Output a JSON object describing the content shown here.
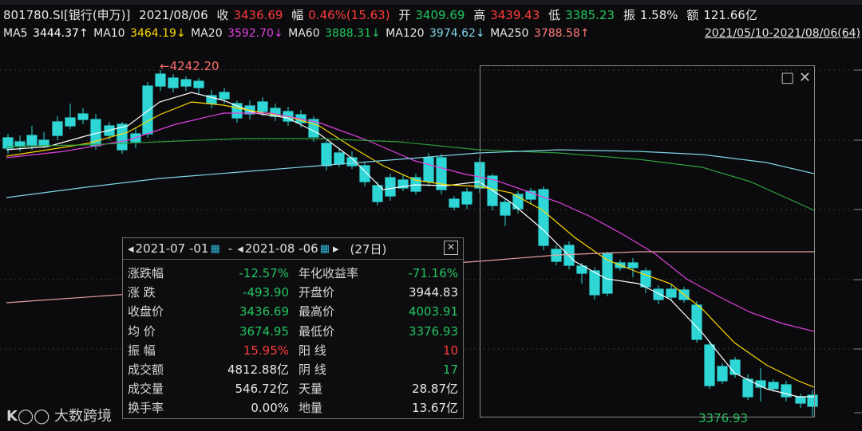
{
  "header": {
    "code": "801780.SI[银行(申万)]",
    "date": "2021/08/06",
    "close_label": "收",
    "close_value": "3436.69",
    "pct_label": "幅",
    "pct_value": "0.46%(15.63)",
    "open_label": "开",
    "open_value": "3409.69",
    "high_label": "高",
    "high_value": "3439.43",
    "low_label": "低",
    "low_value": "3385.23",
    "amp_label": "振",
    "amp_value": "1.58%",
    "amount_label": "额",
    "amount_value": "121.66亿"
  },
  "ma": {
    "ma5": "MA5",
    "ma5_v": "3444.37↑",
    "ma10": "MA10",
    "ma10_v": "3464.19↓",
    "ma20": "MA20",
    "ma20_v": "3592.70↓",
    "ma60": "MA60",
    "ma60_v": "3888.31↓",
    "ma120": "MA120",
    "ma120_v": "3974.62↓",
    "ma250": "MA250",
    "ma250_v": "3788.58↑",
    "range": "2021/05/10-2021/08/06(64)"
  },
  "colors": {
    "up": "#ff3b3b",
    "down": "#2fd6d6",
    "ma5": "#ffffff",
    "ma10": "#ffd700",
    "ma20": "#e040e0",
    "ma60": "#2e9e3a",
    "ma120": "#7fd3e6",
    "ma250": "#e8a0a0"
  },
  "chart_data": {
    "type": "candlestick",
    "high_marker": "←4242.20",
    "low_marker": "3376.93"
  },
  "panel": {
    "start_date": "2021-07 -01",
    "sep": "-",
    "end_date": "2021-08 -06",
    "days": "(27日)",
    "rows": [
      {
        "l1": "涨跌幅",
        "v1": "-12.57%",
        "c1": "green",
        "l2": "年化收益率",
        "v2": "-71.16%",
        "c2": "green"
      },
      {
        "l1": "涨 跌",
        "v1": "-493.90",
        "c1": "green",
        "l2": "开盘价",
        "v2": "3944.83",
        "c2": "white"
      },
      {
        "l1": "收盘价",
        "v1": "3436.69",
        "c1": "green",
        "l2": "最高价",
        "v2": "4003.91",
        "c2": "green"
      },
      {
        "l1": "均 价",
        "v1": "3674.95",
        "c1": "green",
        "l2": "最低价",
        "v2": "3376.93",
        "c2": "green"
      },
      {
        "l1": "振 幅",
        "v1": "15.95%",
        "c1": "red",
        "l2": "阳 线",
        "v2": "10",
        "c2": "red"
      },
      {
        "l1": "成交额",
        "v1": "4812.88亿",
        "c1": "white",
        "l2": "阴 线",
        "v2": "17",
        "c2": "green"
      },
      {
        "l1": "成交量",
        "v1": "546.72亿",
        "c1": "white",
        "l2": "天量",
        "v2": "28.87亿",
        "c2": "white"
      },
      {
        "l1": "换手率",
        "v1": "0.00%",
        "c1": "white",
        "l2": "地量",
        "v2": "13.67亿",
        "c2": "white"
      }
    ]
  },
  "watermark": "大数跨境"
}
